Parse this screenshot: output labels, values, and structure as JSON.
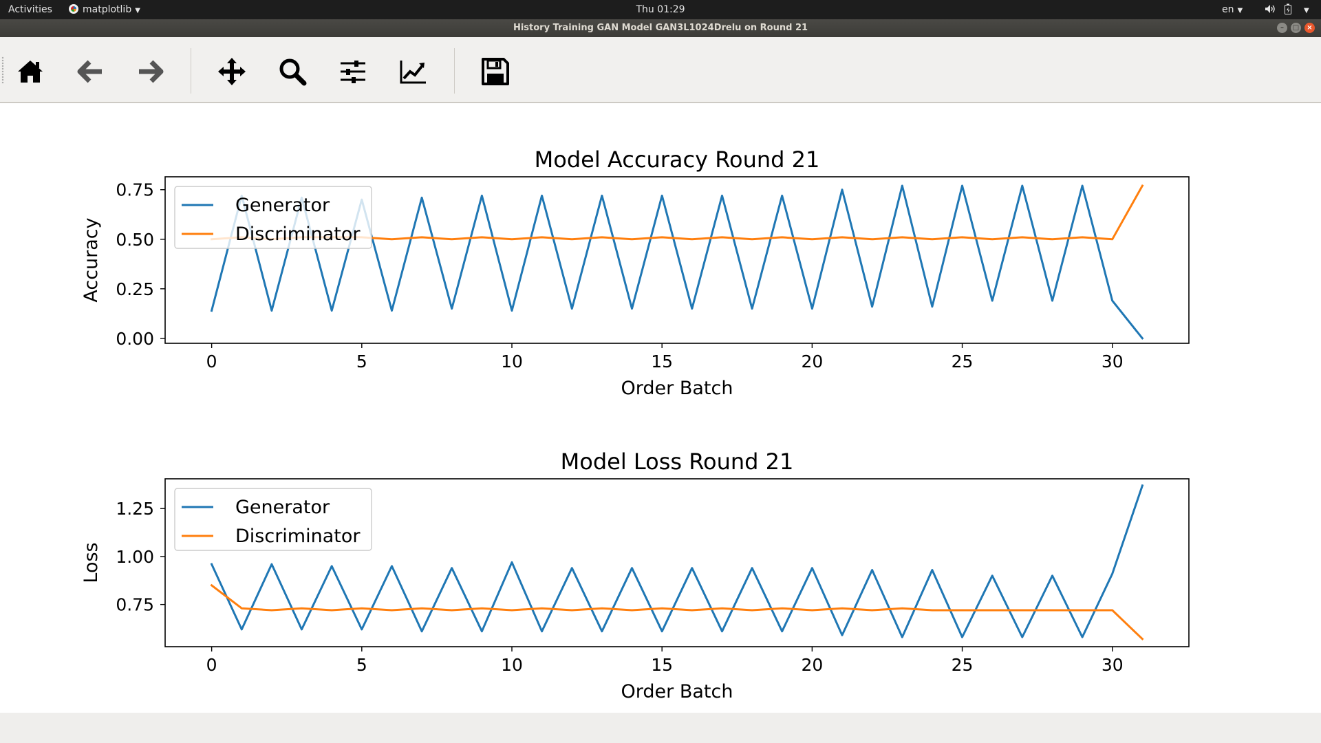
{
  "topbar": {
    "activities": "Activities",
    "app_name": "matplotlib",
    "clock": "Thu 01:29",
    "language": "en"
  },
  "window": {
    "title": "History Training GAN Model GAN3L1024Drelu on Round 21"
  },
  "toolbar": {
    "icons": [
      "home-icon",
      "back-arrow-icon",
      "forward-arrow-icon",
      "pan-move-icon",
      "zoom-magnifier-icon",
      "subplots-config-icon",
      "edit-axis-icon",
      "save-floppy-icon"
    ]
  },
  "colors": {
    "generator": "#1f77b4",
    "discriminator": "#ff7f0e"
  },
  "chart_data": [
    {
      "type": "line",
      "title": "Model Accuracy Round 21",
      "xlabel": "Order Batch",
      "ylabel": "Accuracy",
      "xlim": [
        -1.55,
        32.55
      ],
      "ylim": [
        -0.025,
        0.815
      ],
      "xticks": [
        0,
        5,
        10,
        15,
        20,
        25,
        30
      ],
      "yticks": [
        0.0,
        0.25,
        0.5,
        0.75
      ],
      "ytick_labels": [
        "0.00",
        "0.25",
        "0.50",
        "0.75"
      ],
      "legend_position": "upper left",
      "x": [
        0,
        1,
        2,
        3,
        4,
        5,
        6,
        7,
        8,
        9,
        10,
        11,
        12,
        13,
        14,
        15,
        16,
        17,
        18,
        19,
        20,
        21,
        22,
        23,
        24,
        25,
        26,
        27,
        28,
        29,
        30,
        31
      ],
      "series": [
        {
          "name": "Generator",
          "values": [
            0.14,
            0.72,
            0.14,
            0.71,
            0.14,
            0.7,
            0.14,
            0.71,
            0.15,
            0.72,
            0.14,
            0.72,
            0.15,
            0.72,
            0.15,
            0.72,
            0.15,
            0.72,
            0.15,
            0.72,
            0.15,
            0.75,
            0.16,
            0.77,
            0.16,
            0.77,
            0.19,
            0.77,
            0.19,
            0.77,
            0.19,
            0.0
          ]
        },
        {
          "name": "Discriminator",
          "values": [
            0.5,
            0.51,
            0.5,
            0.51,
            0.51,
            0.51,
            0.5,
            0.51,
            0.5,
            0.51,
            0.5,
            0.51,
            0.5,
            0.51,
            0.5,
            0.51,
            0.5,
            0.51,
            0.5,
            0.51,
            0.5,
            0.51,
            0.5,
            0.51,
            0.5,
            0.51,
            0.5,
            0.51,
            0.5,
            0.51,
            0.5,
            0.77
          ]
        }
      ]
    },
    {
      "type": "line",
      "title": "Model Loss Round 21",
      "xlabel": "Order Batch",
      "ylabel": "Loss",
      "xlim": [
        -1.55,
        32.55
      ],
      "ylim": [
        0.53,
        1.405
      ],
      "xticks": [
        0,
        5,
        10,
        15,
        20,
        25,
        30
      ],
      "yticks": [
        0.75,
        1.0,
        1.25
      ],
      "ytick_labels": [
        "0.75",
        "1.00",
        "1.25"
      ],
      "legend_position": "upper left",
      "x": [
        0,
        1,
        2,
        3,
        4,
        5,
        6,
        7,
        8,
        9,
        10,
        11,
        12,
        13,
        14,
        15,
        16,
        17,
        18,
        19,
        20,
        21,
        22,
        23,
        24,
        25,
        26,
        27,
        28,
        29,
        30,
        31
      ],
      "series": [
        {
          "name": "Generator",
          "values": [
            0.96,
            0.62,
            0.96,
            0.62,
            0.95,
            0.62,
            0.95,
            0.61,
            0.94,
            0.61,
            0.97,
            0.61,
            0.94,
            0.61,
            0.94,
            0.61,
            0.94,
            0.61,
            0.94,
            0.61,
            0.94,
            0.59,
            0.93,
            0.58,
            0.93,
            0.58,
            0.9,
            0.58,
            0.9,
            0.58,
            0.91,
            1.37
          ]
        },
        {
          "name": "Discriminator",
          "values": [
            0.85,
            0.73,
            0.72,
            0.73,
            0.72,
            0.73,
            0.72,
            0.73,
            0.72,
            0.73,
            0.72,
            0.73,
            0.72,
            0.73,
            0.72,
            0.73,
            0.72,
            0.73,
            0.72,
            0.73,
            0.72,
            0.73,
            0.72,
            0.73,
            0.72,
            0.72,
            0.72,
            0.72,
            0.72,
            0.72,
            0.72,
            0.57
          ]
        }
      ]
    }
  ]
}
